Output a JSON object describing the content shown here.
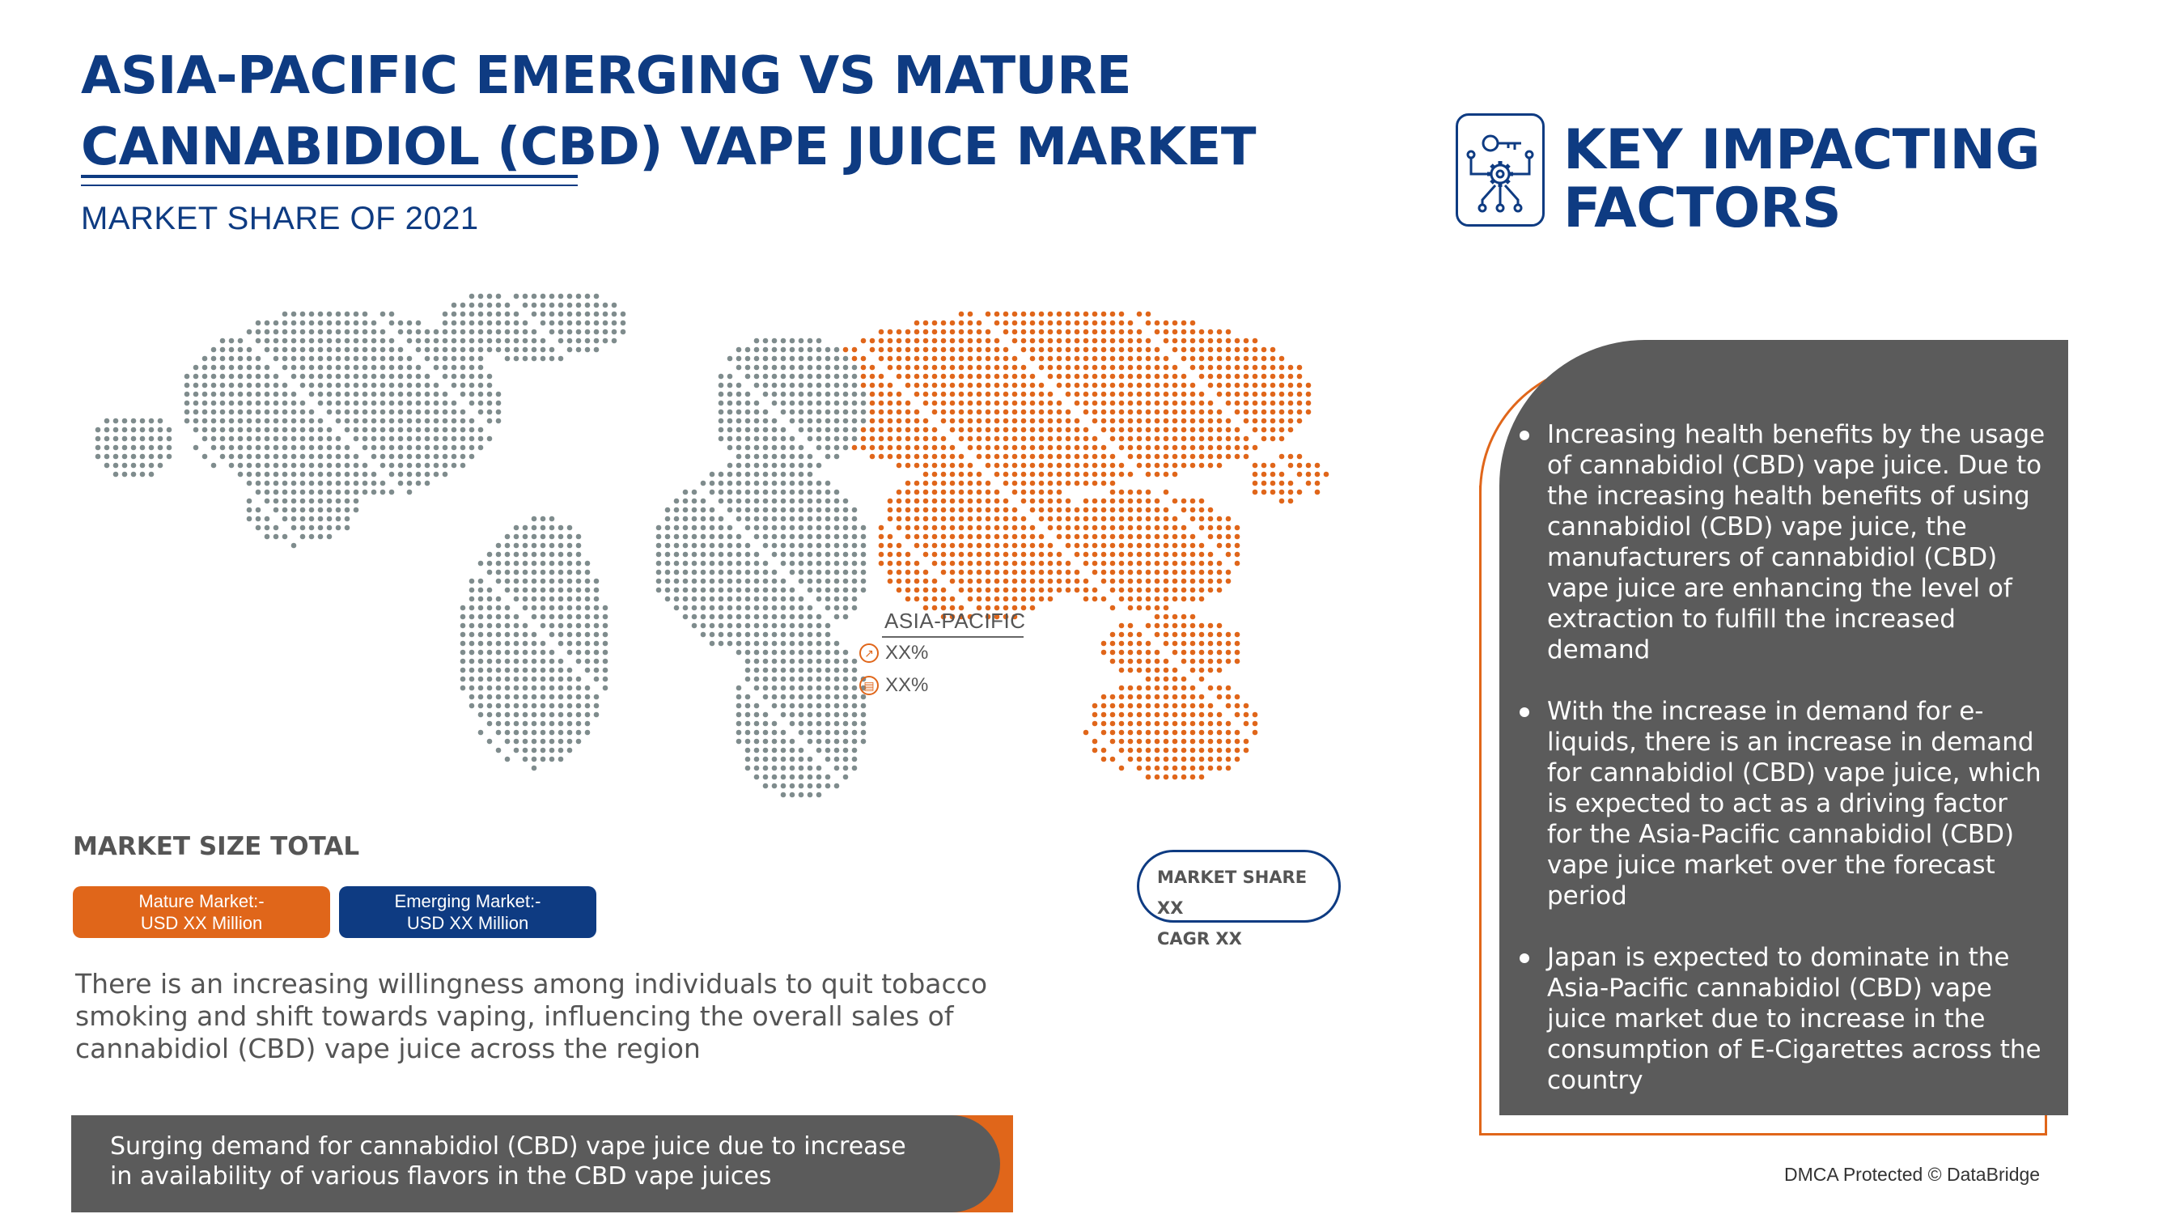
{
  "title": {
    "line1": "ASIA-PACIFIC EMERGING VS MATURE",
    "line2": "CANNABIDIOL (CBD) VAPE JUICE MARKET",
    "subtitle": "MARKET SHARE OF 2021"
  },
  "key_factors_header": {
    "line1": "KEY IMPACTING",
    "line2": "FACTORS",
    "icon": "gear-circuit-key-icon"
  },
  "map": {
    "region_label": "ASIA-PACIFIC",
    "stat1": "XX%",
    "stat2": "XX%",
    "highlight_color": "#e0661a",
    "base_color": "#7f8c8d"
  },
  "market_size": {
    "heading": "MARKET SIZE TOTAL",
    "mature": {
      "line1": "Mature Market:-",
      "line2": "USD  XX Million",
      "color": "#e0661a"
    },
    "emerging": {
      "line1": "Emerging Market:-",
      "line2": "USD  XX Million",
      "color": "#0e3b82"
    }
  },
  "share_box": {
    "share": "MARKET SHARE XX",
    "cagr": "CAGR XX"
  },
  "body_text": "There is an increasing willingness among individuals to quit tobacco smoking and shift towards vaping, influencing the overall sales of cannabidiol (CBD) vape juice across the region",
  "banner_text": {
    "line1": "Surging demand for cannabidiol (CBD) vape juice due to increase",
    "line2": "in availability of various flavors in the CBD vape juices"
  },
  "factors": [
    "Increasing health benefits by the usage of cannabidiol (CBD) vape juice. Due to the increasing health benefits of using cannabidiol (CBD) vape juice, the manufacturers of cannabidiol (CBD) vape juice are enhancing the level of extraction to fulfill the increased demand",
    "With the increase in demand for e-liquids, there is an increase in demand for cannabidiol (CBD) vape juice, which is expected to act as a driving factor for the Asia-Pacific cannabidiol (CBD) vape juice market over the forecast period",
    "Japan is expected to dominate in the Asia-Pacific cannabidiol (CBD) vape juice market due to increase in the consumption of E-Cigarettes across the country"
  ],
  "footer": "DMCA Protected © DataBridge",
  "colors": {
    "navy": "#0e3b82",
    "orange": "#e0661a",
    "panel_grey": "#5b5b5b"
  }
}
